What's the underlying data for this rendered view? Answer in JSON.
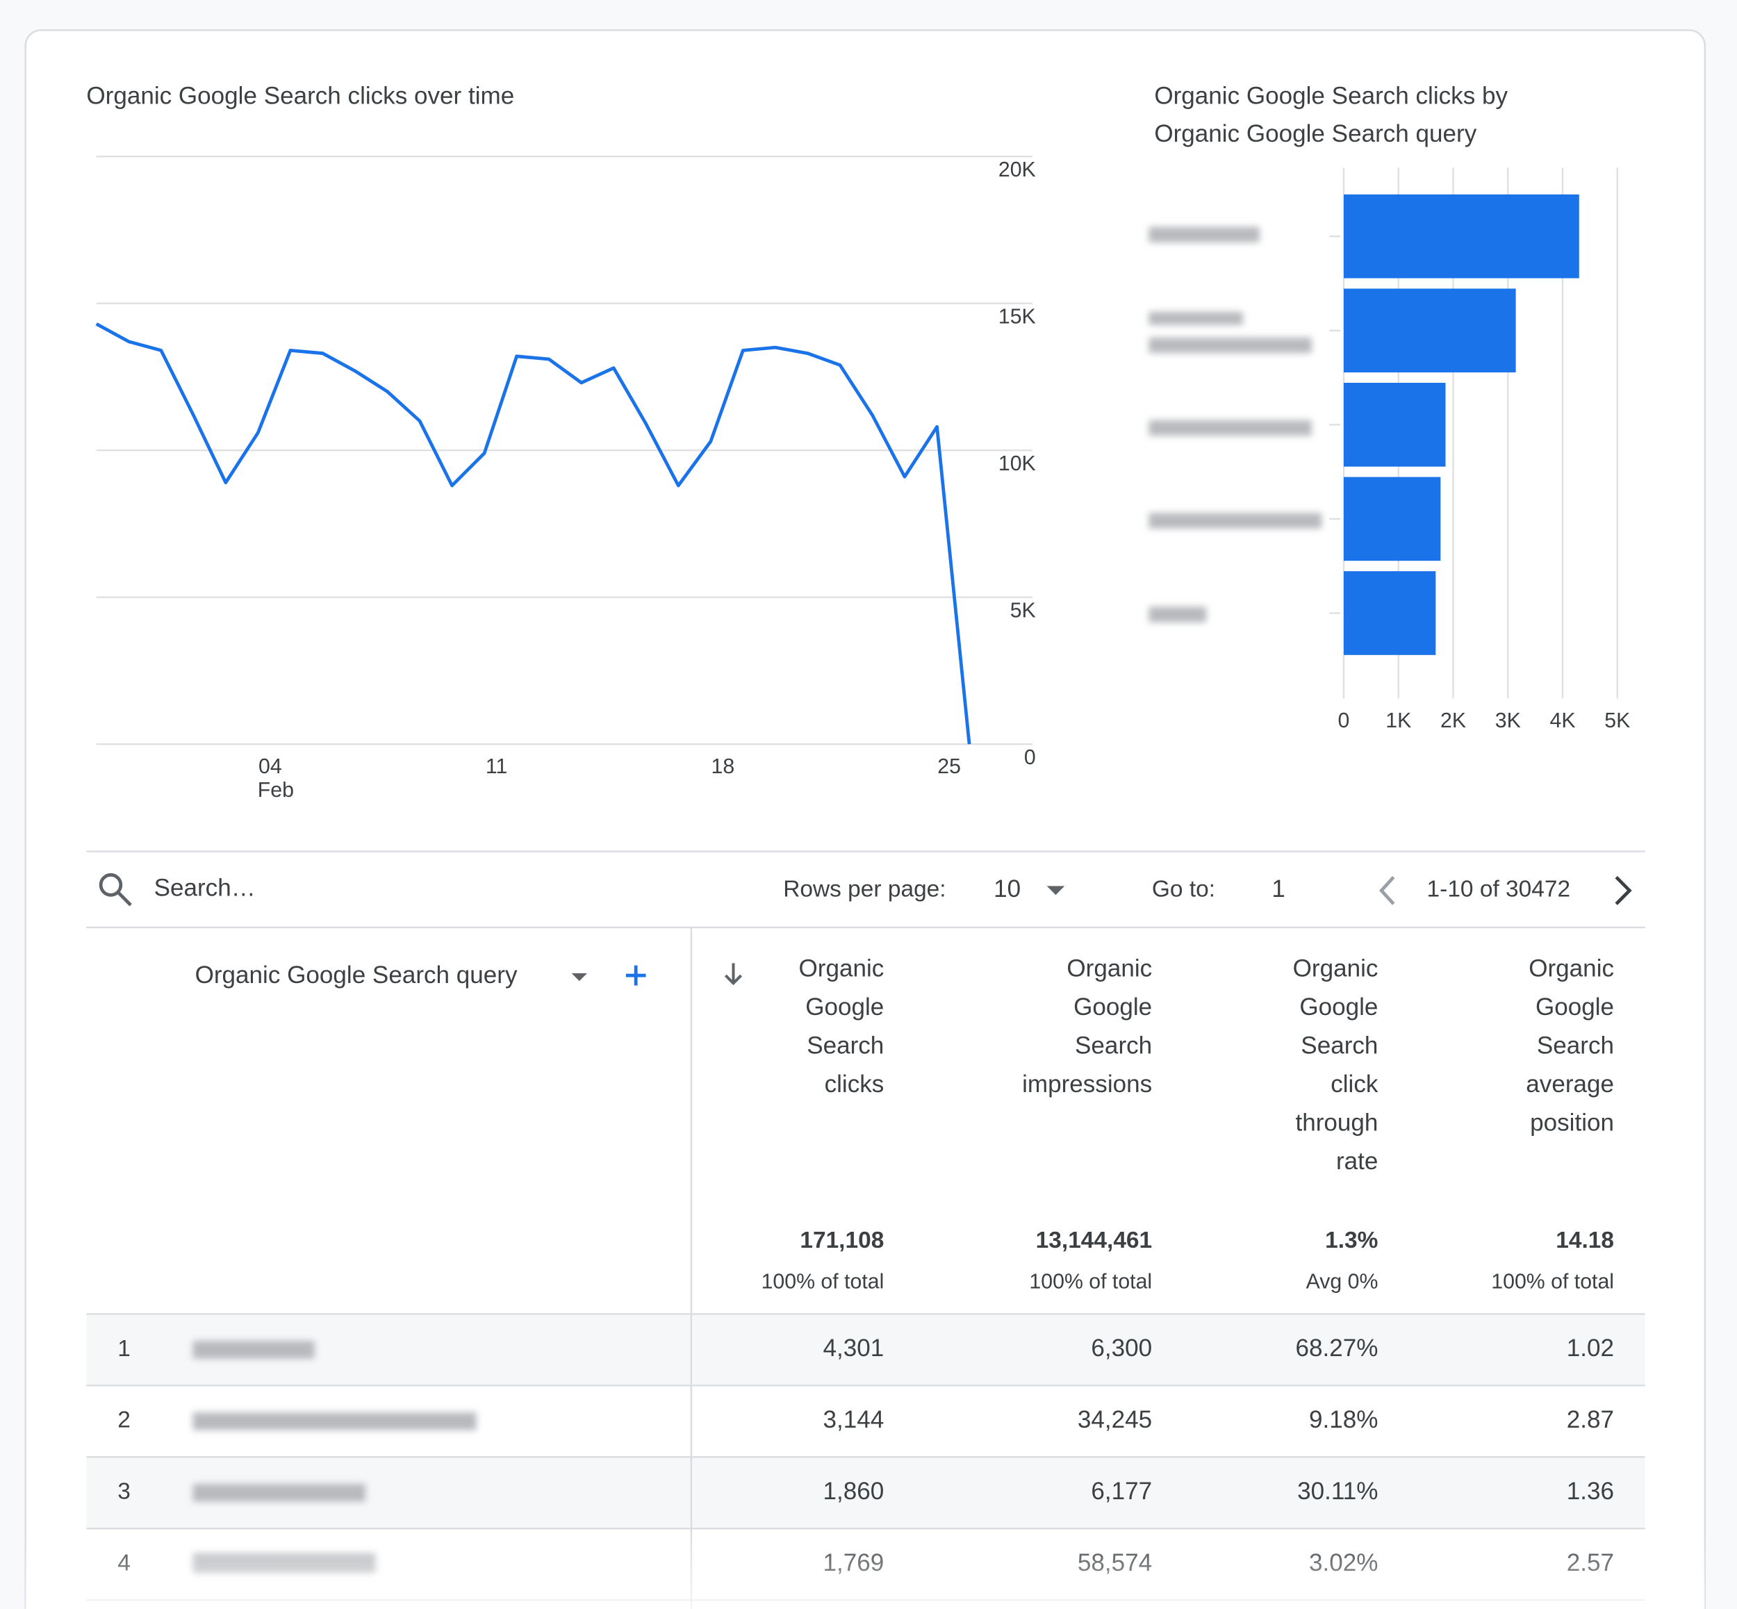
{
  "chart_data": [
    {
      "type": "line",
      "title": "Organic Google Search clicks over time",
      "categories": [
        null,
        null,
        null,
        null,
        null,
        "04",
        null,
        null,
        null,
        null,
        null,
        null,
        "11",
        null,
        null,
        null,
        null,
        null,
        null,
        "18",
        null,
        null,
        null,
        null,
        null,
        null,
        "25",
        null
      ],
      "x_sublabels": [
        null,
        null,
        null,
        null,
        null,
        "Feb",
        null,
        null,
        null,
        null,
        null,
        null,
        null,
        null,
        null,
        null,
        null,
        null,
        null,
        null,
        null,
        null,
        null,
        null,
        null,
        null,
        null,
        null
      ],
      "values": [
        14300,
        13700,
        13400,
        11200,
        8900,
        10600,
        13400,
        13300,
        12700,
        12000,
        11000,
        8800,
        9900,
        13200,
        13100,
        12300,
        12800,
        10900,
        8800,
        10300,
        13400,
        13500,
        13300,
        12900,
        11200,
        9100,
        10800,
        0
      ],
      "color": "#1a73e8",
      "ylim": [
        0,
        20000
      ],
      "yticks": [
        0,
        {
          "value": 5000,
          "label": "5K"
        },
        {
          "value": 10000,
          "label": "10K"
        },
        {
          "value": 15000,
          "label": "15K"
        },
        {
          "value": 20000,
          "label": "20K"
        }
      ],
      "grid": true
    },
    {
      "type": "bar",
      "orientation": "horizontal",
      "title": [
        "Organic Google Search clicks by",
        "Organic Google Search query"
      ],
      "categories": [
        null,
        null,
        null,
        null,
        null
      ],
      "values": [
        4301,
        3144,
        1860,
        1769,
        1680
      ],
      "color": "#1a73e8",
      "xlim": [
        0,
        5000
      ],
      "xticks": [
        0,
        {
          "value": 1000,
          "label": "1K"
        },
        {
          "value": 2000,
          "label": "2K"
        },
        {
          "value": 3000,
          "label": "3K"
        },
        {
          "value": 4000,
          "label": "4K"
        },
        {
          "value": 5000,
          "label": "5K"
        }
      ],
      "grid": true
    }
  ],
  "toolbar": {
    "search_placeholder": "Search…",
    "rows_per_page_label": "Rows per page:",
    "rows_per_page": "10",
    "goto_label": "Go to:",
    "goto": "1",
    "range": "1-10 of 30472"
  },
  "table": {
    "dimension_header": "Organic Google Search query",
    "metric_headers": [
      [
        "Organic",
        "Google",
        "Search",
        "clicks"
      ],
      [
        "Organic",
        "Google",
        "Search",
        "impressions"
      ],
      [
        "Organic",
        "Google",
        "Search",
        "click",
        "through",
        "rate"
      ],
      [
        "Organic",
        "Google",
        "Search",
        "average",
        "position"
      ]
    ],
    "totals": [
      {
        "value": "171,108",
        "note": "100% of total"
      },
      {
        "value": "13,144,461",
        "note": "100% of total"
      },
      {
        "value": "1.3%",
        "note": "Avg 0%"
      },
      {
        "value": "14.18",
        "note": "100% of total"
      }
    ],
    "rows": [
      {
        "rank": "1",
        "query": null,
        "cells": [
          "4,301",
          "6,300",
          "68.27%",
          "1.02"
        ]
      },
      {
        "rank": "2",
        "query": null,
        "cells": [
          "3,144",
          "34,245",
          "9.18%",
          "2.87"
        ]
      },
      {
        "rank": "3",
        "query": null,
        "cells": [
          "1,860",
          "6,177",
          "30.11%",
          "1.36"
        ]
      },
      {
        "rank": "4",
        "query": null,
        "cells": [
          "1,769",
          "58,574",
          "3.02%",
          "2.57"
        ]
      }
    ]
  }
}
